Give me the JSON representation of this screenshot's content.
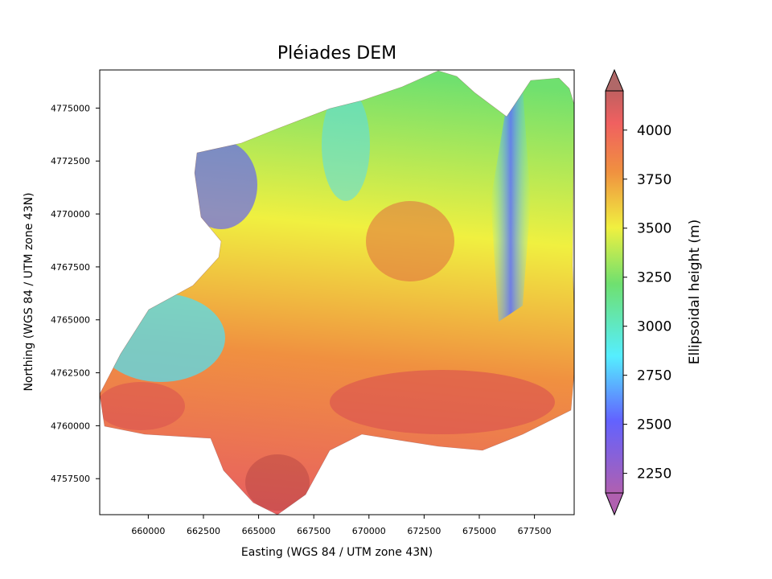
{
  "chart_data": {
    "type": "heatmap",
    "title": "Pléiades DEM",
    "xlabel": "Easting (WGS 84 / UTM zone 43N)",
    "ylabel": "Northing (WGS 84 / UTM zone 43N)",
    "xlim": [
      657800,
      679300
    ],
    "ylim": [
      4755800,
      4776800
    ],
    "x_ticks": [
      "660000",
      "662500",
      "665000",
      "667500",
      "670000",
      "672500",
      "675000",
      "677500"
    ],
    "x_tick_values": [
      660000,
      662500,
      665000,
      667500,
      670000,
      672500,
      675000,
      677500
    ],
    "y_ticks": [
      "4757500",
      "4760000",
      "4762500",
      "4765000",
      "4767500",
      "4770000",
      "4772500",
      "4775000"
    ],
    "y_tick_values": [
      4757500,
      4760000,
      4762500,
      4765000,
      4767500,
      4770000,
      4772500,
      4775000
    ],
    "colorbar": {
      "label": "Ellipsoidal height (m)",
      "range": [
        2150,
        4200
      ],
      "ticks": [
        "2250",
        "2500",
        "2750",
        "3000",
        "3250",
        "3500",
        "3750",
        "4000"
      ],
      "tick_values": [
        2250,
        2500,
        2750,
        3000,
        3250,
        3500,
        3750,
        4000
      ],
      "extend": "both",
      "colormap": "rainbow"
    },
    "grid": false
  },
  "colors": {
    "low": "#b060b0",
    "blue": "#5a5aff",
    "cyan": "#55eeff",
    "green": "#6fe06f",
    "yellow": "#f0f040",
    "orange": "#f09040",
    "red": "#f06060",
    "high": "#b06060"
  }
}
